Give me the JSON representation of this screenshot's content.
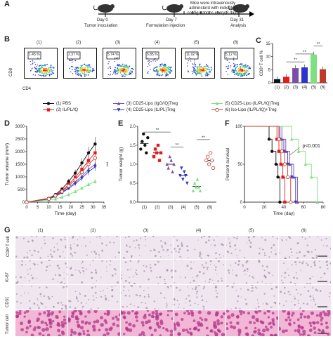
{
  "panels": {
    "A": "A",
    "B": "B",
    "C": "C",
    "D": "D",
    "E": "E",
    "F": "F",
    "G": "G"
  },
  "timeline": {
    "day0": "Day 0",
    "day0_sub": "Tumor inoculation",
    "day7": "Day 7",
    "day7_sub": "Formulation injection",
    "day31": "Day 31",
    "day31_sub": "Analysis",
    "note": "Mice were intravenously adminsterd with indicated configurations every 3 days"
  },
  "flow": {
    "xlabel": "CD4",
    "ylabel": "CD8",
    "groups": [
      "(1)",
      "(2)",
      "(3)",
      "(4)",
      "(5)",
      "(6)"
    ],
    "percents": [
      "1.45 %",
      "2.37 %",
      "5.74 %",
      "5.85 %",
      "11.02 %",
      "5.12 %"
    ]
  },
  "legend": [
    {
      "label": "(1) PBS",
      "color": "#111111",
      "marker": "circle"
    },
    {
      "label": "(2) IL/PL/IQ",
      "color": "#e41a1c",
      "marker": "square"
    },
    {
      "label": "(3) CD25-Lipo (IgG/IQ)Treg",
      "color": "#7b4fa8",
      "marker": "triangle"
    },
    {
      "label": "(4) CD25-Lipo (IL/PL)Treg",
      "color": "#2c35c9",
      "marker": "tridown"
    },
    {
      "label": "(5) CD25-Lipo (IL/PL/IQ)Treg",
      "color": "#7ee07e",
      "marker": "triangle"
    },
    {
      "label": "(6) Iso-Lipo (IL/PL/IQ)+Treg",
      "color": "#c0392b",
      "marker": "circleopen"
    }
  ],
  "chart_data": [
    {
      "type": "bar",
      "id": "C",
      "ylabel": "CD8⁺T cell %",
      "categories": [
        "(1)",
        "(2)",
        "(3)",
        "(4)",
        "(5)",
        "(6)"
      ],
      "values": [
        1.4,
        2.3,
        5.6,
        5.9,
        10.8,
        5.2
      ],
      "colors": [
        "#111111",
        "#e41a1c",
        "#7b4fa8",
        "#2c35c9",
        "#7ee07e",
        "#c0392b"
      ],
      "ylim": [
        0,
        15
      ],
      "yticks": [
        "0",
        "5",
        "10",
        "15"
      ],
      "sig": [
        "**",
        "**",
        "**"
      ]
    },
    {
      "type": "line",
      "id": "D",
      "xlabel": "Time (day)",
      "ylabel": "Tumor volume (mm³)",
      "x": [
        0,
        10,
        13,
        16,
        19,
        22,
        25,
        28,
        31
      ],
      "xlim": [
        0,
        35
      ],
      "xticks": [
        "0",
        "5",
        "10",
        "15",
        "20",
        "25",
        "30",
        "35"
      ],
      "ylim": [
        0,
        3000
      ],
      "yticks": [
        "0",
        "500",
        "1000",
        "1500",
        "2000",
        "2500",
        "3000"
      ],
      "series": [
        {
          "name": "(1) PBS",
          "values": [
            0,
            150,
            300,
            520,
            820,
            1150,
            1550,
            1950,
            2300
          ]
        },
        {
          "name": "(2) IL/PL/IQ",
          "values": [
            0,
            140,
            270,
            460,
            700,
            980,
            1300,
            1650,
            1950
          ]
        },
        {
          "name": "(3) CD25-Lipo (IgG/IQ)Treg",
          "values": [
            0,
            130,
            240,
            390,
            580,
            790,
            1030,
            1300,
            1500
          ]
        },
        {
          "name": "(4) CD25-Lipo (IL/PL)Treg",
          "values": [
            0,
            120,
            230,
            370,
            540,
            730,
            950,
            1200,
            1400
          ]
        },
        {
          "name": "(5) CD25-Lipo (IL/PL/IQ)Treg",
          "values": [
            0,
            80,
            130,
            200,
            300,
            420,
            560,
            700,
            820
          ]
        },
        {
          "name": "(6) Iso-Lipo (IL/PL/IQ)+Treg",
          "values": [
            0,
            130,
            260,
            420,
            640,
            890,
            1180,
            1500,
            1750
          ]
        }
      ],
      "sig": "***"
    },
    {
      "type": "scatter",
      "id": "E",
      "ylabel": "Tumor weight (g)",
      "categories": [
        "(1)",
        "(2)",
        "(3)",
        "(4)",
        "(5)",
        "(6)"
      ],
      "points": [
        [
          1.4,
          1.6,
          1.8,
          1.5,
          1.3,
          1.7
        ],
        [
          1.2,
          1.4,
          1.3,
          1.5,
          1.1,
          1.3
        ],
        [
          1.0,
          0.9,
          1.2,
          1.1,
          0.8,
          1.0
        ],
        [
          0.7,
          0.9,
          0.6,
          0.8,
          0.7,
          0.5
        ],
        [
          0.3,
          0.5,
          0.4,
          0.6,
          0.4,
          0.3
        ],
        [
          1.1,
          1.2,
          1.0,
          1.3,
          1.1,
          0.9
        ]
      ],
      "ylim": [
        0,
        2.0
      ],
      "yticks": [
        "0.0",
        "0.5",
        "1.0",
        "1.5",
        "2.0"
      ],
      "sig": [
        "**",
        "**",
        "**"
      ]
    },
    {
      "type": "line",
      "id": "F",
      "xlabel": "Time (day)",
      "ylabel": "Percent survival",
      "xlim": [
        0,
        80
      ],
      "xticks": [
        "0",
        "20",
        "40",
        "60",
        "80"
      ],
      "ylim": [
        0,
        100
      ],
      "yticks": [
        "0",
        "50",
        "100"
      ],
      "series": [
        {
          "name": "(1) PBS",
          "x": [
            0,
            25,
            28,
            32,
            34,
            36
          ],
          "values": [
            100,
            83,
            67,
            50,
            33,
            0
          ]
        },
        {
          "name": "(2) IL/PL/IQ",
          "x": [
            0,
            33,
            35,
            37,
            39,
            41
          ],
          "values": [
            100,
            83,
            67,
            50,
            33,
            0
          ]
        },
        {
          "name": "(3) CD25-Lipo (IgG/IQ)Treg",
          "x": [
            0,
            38,
            42,
            46,
            50,
            54
          ],
          "values": [
            100,
            83,
            67,
            50,
            33,
            0
          ]
        },
        {
          "name": "(4) CD25-Lipo (IL/PL)Treg",
          "x": [
            0,
            36,
            40,
            44,
            48,
            52
          ],
          "values": [
            100,
            83,
            67,
            50,
            33,
            0
          ]
        },
        {
          "name": "(5) CD25-Lipo (IL/PL/IQ)Treg",
          "x": [
            0,
            48,
            55,
            62,
            68,
            74
          ],
          "values": [
            100,
            83,
            67,
            50,
            33,
            0
          ]
        },
        {
          "name": "(6) Iso-Lipo (IL/PL/IQ)+Treg",
          "x": [
            0,
            35,
            38,
            41,
            44,
            47
          ],
          "values": [
            100,
            83,
            67,
            50,
            33,
            0
          ]
        }
      ],
      "annotation": "p<0.001"
    }
  ],
  "histology": {
    "columns": [
      "(1)",
      "(2)",
      "(3)",
      "(4)",
      "(5)",
      "(6)"
    ],
    "rows": [
      "CD8⁺T cell",
      "Ki-67",
      "CD31",
      "Tumor cell"
    ],
    "stain_light": "#efe6ef",
    "stain_dark": "#9a7aa0",
    "he_light": "#f2b7d6",
    "he_dark": "#b2378a"
  }
}
